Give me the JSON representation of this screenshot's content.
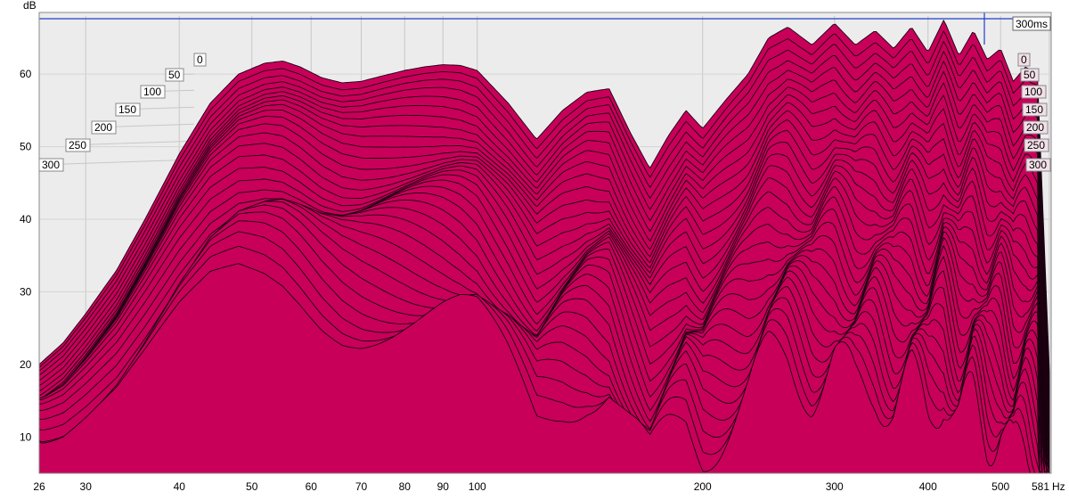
{
  "chart_data": {
    "type": "area",
    "subtype": "cumulative-spectral-decay-waterfall",
    "ylabel": "dB",
    "xunit": "Hz",
    "x_scale": "log",
    "xlim": [
      26,
      581
    ],
    "ylim": [
      5,
      68
    ],
    "y_ticks": [
      10,
      20,
      30,
      40,
      50,
      60
    ],
    "x_ticks": [
      26,
      30,
      40,
      50,
      60,
      70,
      80,
      90,
      100,
      200,
      300,
      400,
      500,
      581
    ],
    "x_tick_labels": [
      "26",
      "30",
      "40",
      "50",
      "60",
      "70",
      "80",
      "90",
      "100",
      "200",
      "300",
      "400",
      "500",
      "581"
    ],
    "time_slices_ms": [
      0,
      50,
      100,
      150,
      200,
      250,
      300
    ],
    "time_slice_labels": [
      "0",
      "50",
      "100",
      "150",
      "200",
      "250",
      "300"
    ],
    "cursor_label": "300ms",
    "slice_count": 33,
    "fill_color": "#c8005a",
    "outline_color": "#1a0010",
    "background_color": "#ececec",
    "grid": true,
    "series": [
      {
        "name": "0",
        "x": [
          26,
          28,
          30,
          33,
          36,
          40,
          44,
          48,
          52,
          55,
          58,
          62,
          66,
          70,
          75,
          80,
          85,
          90,
          95,
          100,
          110,
          120,
          130,
          140,
          150,
          160,
          170,
          180,
          190,
          200,
          215,
          230,
          245,
          260,
          280,
          300,
          320,
          340,
          360,
          380,
          400,
          420,
          440,
          460,
          480,
          500,
          520,
          540,
          560,
          581
        ],
        "y": [
          20,
          23,
          27,
          33,
          40,
          49,
          56,
          60,
          61.5,
          61.8,
          61,
          59.5,
          58.8,
          59,
          59.8,
          60.5,
          61,
          61.3,
          61.2,
          60.5,
          56,
          51,
          55,
          57.5,
          58,
          52,
          47,
          51.5,
          55,
          52.5,
          56.5,
          60,
          65,
          66.5,
          64,
          67,
          64,
          66,
          63.5,
          66.5,
          63,
          67.5,
          62.5,
          66,
          62,
          63.5,
          59,
          61,
          60,
          19
        ]
      }
    ]
  }
}
